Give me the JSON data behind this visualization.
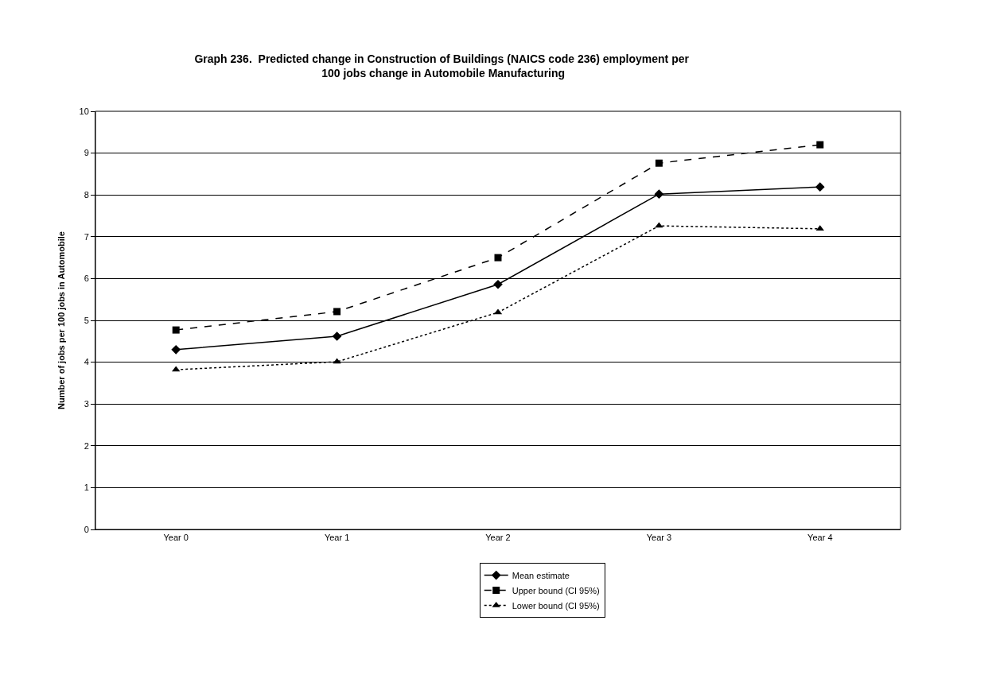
{
  "chart_data": {
    "type": "line",
    "title": "Graph 236.  Predicted change in Construction of Buildings (NAICS code 236) employment per $^{}$100 jobs change in Automobile Manufacturing",
    "ylabel": "Number of jobs per 100 jobs in Automobile",
    "categories": [
      "Year 0",
      "Year 1",
      "Year 2",
      "Year 3",
      "Year 4"
    ],
    "series": [
      {
        "name": "Mean estimate",
        "color": "#000000",
        "marker": "diamond",
        "line_style": "solid",
        "values": [
          4.3,
          4.62,
          5.86,
          8.02,
          8.19
        ]
      },
      {
        "name": "Upper bound (CI 95%)",
        "color": "#000000",
        "marker": "square",
        "line_style": "dashed",
        "values": [
          4.77,
          5.21,
          6.5,
          8.76,
          9.2
        ]
      },
      {
        "name": "Lower bound (CI 95%)",
        "color": "#000000",
        "marker": "triangle",
        "line_style": "dotted",
        "values": [
          3.82,
          4.01,
          5.19,
          7.26,
          7.19
        ]
      }
    ],
    "ylim": [
      0,
      10
    ],
    "yticks": [
      0,
      1,
      2,
      3,
      4,
      5,
      6,
      7,
      8,
      9,
      10
    ],
    "grid": "y",
    "legend": "bottom"
  }
}
